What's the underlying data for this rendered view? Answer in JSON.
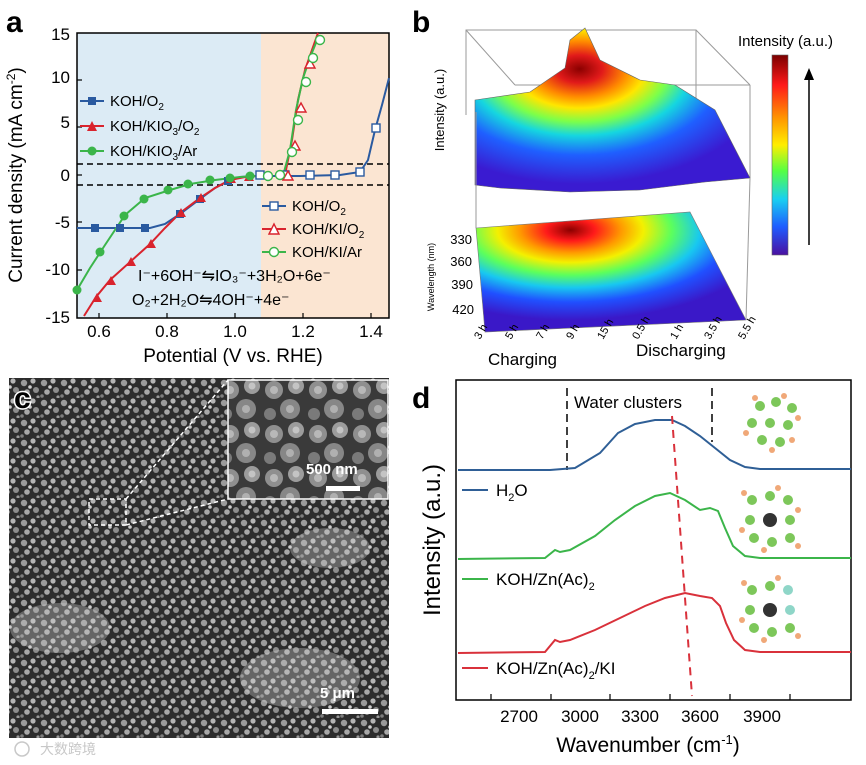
{
  "panels": {
    "a": {
      "letter": "a",
      "xlabel": "Potential (V vs. RHE)",
      "ylabel_main": "Current density (mA cm",
      "ylabel_sup": "-2",
      "ylabel_end": ")",
      "xticks": [
        "0.6",
        "0.8",
        "1.0",
        "1.2",
        "1.4"
      ],
      "yticks": [
        "15",
        "10",
        "5",
        "0",
        "-5",
        "-10",
        "-15"
      ],
      "legend_left": [
        {
          "label_main": "KOH/O",
          "label_sub": "2",
          "label_rest": "",
          "color": "#2a5aa0",
          "marker": "square"
        },
        {
          "label_main": "KOH/KIO",
          "label_sub": "3",
          "label_rest": "/O",
          "label_sub2": "2",
          "color": "#d9232d",
          "marker": "triangle"
        },
        {
          "label_main": "KOH/KIO",
          "label_sub": "3",
          "label_rest": "/Ar",
          "label_sub2": "",
          "color": "#3bb54a",
          "marker": "circle"
        }
      ],
      "legend_right": [
        {
          "label_main": "KOH/O",
          "label_sub": "2",
          "label_rest": "",
          "color": "#2a5aa0",
          "marker": "square-open"
        },
        {
          "label_main": "KOH/KI/O",
          "label_sub": "2",
          "label_rest": "",
          "color": "#d9232d",
          "marker": "triangle-open"
        },
        {
          "label_main": "KOH/KI/Ar",
          "label_sub": "",
          "label_rest": "",
          "color": "#3bb54a",
          "marker": "circle-open"
        }
      ],
      "equation1": "I⁻+6OH⁻⇋IO₃⁻+3H₂O+6e⁻",
      "equation2": "O₂+2H₂O⇋4OH⁻+4e⁻",
      "colors": {
        "left_bg": "#dcebf5",
        "right_bg": "#fbe5d2"
      }
    },
    "b": {
      "letter": "b",
      "ylabel": "Intensity (a.u.)",
      "colorbar_title": "Intensity (a.u.)",
      "wavelength_label": "Wavelength (nm)",
      "wavelength_ticks": [
        "330",
        "360",
        "390",
        "420"
      ],
      "time_ticks": [
        "3 h",
        "5 h",
        "7 h",
        "9 h",
        "15 h",
        "0.5 h",
        "1 h",
        "3.5 h",
        "5.5 h"
      ],
      "charging_label": "Charging",
      "discharging_label": "Discharging"
    },
    "c": {
      "letter": "c",
      "inset_scale": "500 nm",
      "main_scale": "5 μm",
      "watermark": "大数跨境"
    },
    "d": {
      "letter": "d",
      "ylabel": "Intensity (a.u.)",
      "xlabel_main": "Wavenumber (cm",
      "xlabel_sup": "-1",
      "xlabel_end": ")",
      "xticks": [
        "2700",
        "3000",
        "3300",
        "3600",
        "3900"
      ],
      "annotation": "Water clusters",
      "legends": [
        {
          "label_main": "H",
          "label_sub": "2",
          "label_rest": "O",
          "color": "#2f5f96"
        },
        {
          "label_main": "KOH/Zn(Ac)",
          "label_sub": "2",
          "label_rest": "",
          "color": "#3bb54a"
        },
        {
          "label_main": "KOH/Zn(Ac)",
          "label_sub": "2",
          "label_rest": "/KI",
          "color": "#d9313b"
        }
      ]
    }
  }
}
